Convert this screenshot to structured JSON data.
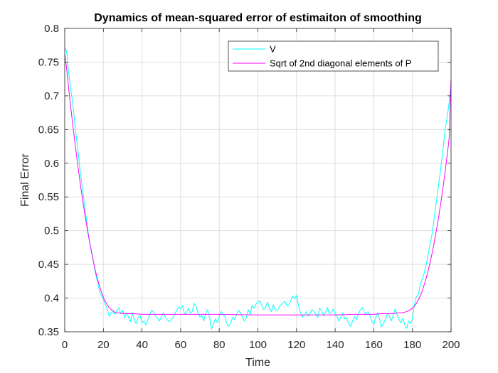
{
  "chart_data": {
    "type": "line",
    "title": "Dynamics of mean-squared error of estimaiton of smoothing",
    "xlabel": "Time",
    "ylabel": "Final Error",
    "xlim": [
      0,
      200
    ],
    "ylim": [
      0.35,
      0.8
    ],
    "xticks": [
      "0",
      "20",
      "40",
      "60",
      "80",
      "100",
      "120",
      "140",
      "160",
      "180",
      "200"
    ],
    "yticks": [
      "0.35",
      "0.4",
      "0.45",
      "0.5",
      "0.55",
      "0.6",
      "0.65",
      "0.7",
      "0.75",
      "0.8"
    ],
    "grid": true,
    "legend_position": "top-right",
    "series": [
      {
        "name": "V",
        "color": "#00ffff",
        "x": [
          0,
          1,
          2,
          3,
          4,
          5,
          6,
          7,
          8,
          9,
          10,
          11,
          12,
          13,
          14,
          15,
          16,
          17,
          18,
          19,
          20,
          21,
          22,
          23,
          24,
          25,
          26,
          27,
          28,
          29,
          30,
          31,
          32,
          33,
          34,
          35,
          36,
          37,
          38,
          39,
          40,
          41,
          42,
          43,
          44,
          45,
          46,
          47,
          48,
          49,
          50,
          51,
          52,
          53,
          54,
          55,
          56,
          57,
          58,
          59,
          60,
          61,
          62,
          63,
          64,
          65,
          66,
          67,
          68,
          69,
          70,
          71,
          72,
          73,
          74,
          75,
          76,
          77,
          78,
          79,
          80,
          81,
          82,
          83,
          84,
          85,
          86,
          87,
          88,
          89,
          90,
          91,
          92,
          93,
          94,
          95,
          96,
          97,
          98,
          99,
          100,
          101,
          102,
          103,
          104,
          105,
          106,
          107,
          108,
          109,
          110,
          111,
          112,
          113,
          114,
          115,
          116,
          117,
          118,
          119,
          120,
          121,
          122,
          123,
          124,
          125,
          126,
          127,
          128,
          129,
          130,
          131,
          132,
          133,
          134,
          135,
          136,
          137,
          138,
          139,
          140,
          141,
          142,
          143,
          144,
          145,
          146,
          147,
          148,
          149,
          150,
          151,
          152,
          153,
          154,
          155,
          156,
          157,
          158,
          159,
          160,
          161,
          162,
          163,
          164,
          165,
          166,
          167,
          168,
          169,
          170,
          171,
          172,
          173,
          174,
          175,
          176,
          177,
          178,
          179,
          180,
          181,
          182,
          183,
          184,
          185,
          186,
          187,
          188,
          189,
          190,
          191,
          192,
          193,
          194,
          195,
          196,
          197,
          198,
          199,
          200
        ],
        "y": [
          0.772,
          0.765,
          0.735,
          0.712,
          0.692,
          0.665,
          0.639,
          0.615,
          0.588,
          0.567,
          0.543,
          0.522,
          0.5,
          0.482,
          0.468,
          0.452,
          0.435,
          0.424,
          0.41,
          0.404,
          0.398,
          0.39,
          0.384,
          0.373,
          0.378,
          0.38,
          0.376,
          0.381,
          0.386,
          0.377,
          0.382,
          0.371,
          0.378,
          0.372,
          0.365,
          0.378,
          0.368,
          0.362,
          0.372,
          0.374,
          0.363,
          0.366,
          0.36,
          0.368,
          0.375,
          0.382,
          0.379,
          0.373,
          0.37,
          0.366,
          0.372,
          0.378,
          0.372,
          0.368,
          0.365,
          0.368,
          0.371,
          0.377,
          0.382,
          0.387,
          0.384,
          0.389,
          0.376,
          0.378,
          0.385,
          0.378,
          0.38,
          0.392,
          0.388,
          0.378,
          0.372,
          0.374,
          0.366,
          0.378,
          0.383,
          0.371,
          0.354,
          0.362,
          0.369,
          0.364,
          0.373,
          0.38,
          0.376,
          0.372,
          0.362,
          0.358,
          0.364,
          0.372,
          0.368,
          0.376,
          0.382,
          0.378,
          0.372,
          0.366,
          0.371,
          0.383,
          0.376,
          0.389,
          0.385,
          0.391,
          0.394,
          0.396,
          0.389,
          0.383,
          0.386,
          0.394,
          0.385,
          0.38,
          0.39,
          0.382,
          0.381,
          0.386,
          0.39,
          0.393,
          0.395,
          0.389,
          0.389,
          0.396,
          0.403,
          0.399,
          0.404,
          0.389,
          0.379,
          0.372,
          0.375,
          0.38,
          0.373,
          0.377,
          0.383,
          0.38,
          0.376,
          0.371,
          0.385,
          0.381,
          0.374,
          0.379,
          0.386,
          0.377,
          0.378,
          0.384,
          0.377,
          0.372,
          0.366,
          0.372,
          0.378,
          0.369,
          0.371,
          0.362,
          0.358,
          0.366,
          0.373,
          0.368,
          0.376,
          0.382,
          0.386,
          0.379,
          0.376,
          0.38,
          0.374,
          0.366,
          0.361,
          0.372,
          0.378,
          0.369,
          0.357,
          0.362,
          0.369,
          0.376,
          0.374,
          0.366,
          0.374,
          0.384,
          0.376,
          0.369,
          0.363,
          0.37,
          0.361,
          0.355,
          0.366,
          0.362,
          0.369,
          0.39,
          0.402,
          0.405,
          0.418,
          0.428,
          0.436,
          0.448,
          0.462,
          0.478,
          0.492,
          0.512,
          0.535,
          0.555,
          0.578,
          0.6,
          0.625,
          0.652,
          0.668,
          0.69,
          0.718
        ]
      },
      {
        "name": "Sqrt of 2nd diagonal elements of P",
        "color": "#ff00ff",
        "x": [
          0,
          1,
          2,
          3,
          4,
          5,
          6,
          7,
          8,
          9,
          10,
          11,
          12,
          13,
          14,
          15,
          16,
          17,
          18,
          19,
          20,
          21,
          22,
          23,
          24,
          25,
          26,
          27,
          28,
          30,
          32,
          35,
          40,
          50,
          60,
          80,
          100,
          120,
          140,
          150,
          160,
          165,
          170,
          172,
          174,
          176,
          178,
          180,
          181,
          182,
          183,
          184,
          185,
          186,
          187,
          188,
          189,
          190,
          191,
          192,
          193,
          194,
          195,
          196,
          197,
          198,
          199,
          200
        ],
        "y": [
          0.762,
          0.74,
          0.712,
          0.686,
          0.661,
          0.637,
          0.614,
          0.592,
          0.571,
          0.551,
          0.532,
          0.514,
          0.497,
          0.481,
          0.466,
          0.452,
          0.439,
          0.428,
          0.418,
          0.409,
          0.401,
          0.395,
          0.39,
          0.386,
          0.383,
          0.381,
          0.379,
          0.378,
          0.378,
          0.377,
          0.377,
          0.377,
          0.376,
          0.376,
          0.376,
          0.376,
          0.375,
          0.375,
          0.375,
          0.376,
          0.376,
          0.377,
          0.377,
          0.378,
          0.378,
          0.379,
          0.381,
          0.385,
          0.388,
          0.392,
          0.397,
          0.403,
          0.41,
          0.419,
          0.428,
          0.439,
          0.451,
          0.464,
          0.478,
          0.494,
          0.51,
          0.528,
          0.547,
          0.567,
          0.589,
          0.612,
          0.636,
          0.725
        ]
      }
    ]
  }
}
